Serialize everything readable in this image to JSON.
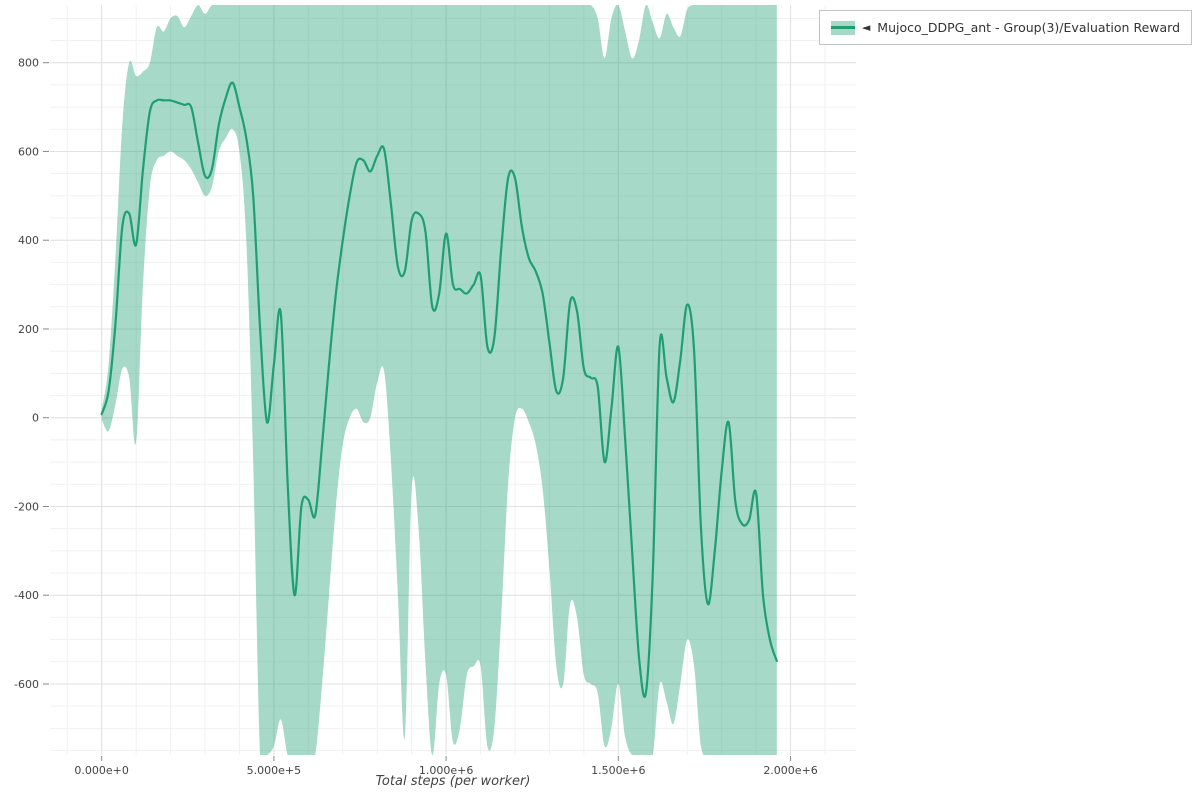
{
  "page": {
    "background": "#ffffff"
  },
  "legend": {
    "marker": "◄",
    "label": "Mujoco_DDPG_ant - Group(3)/Evaluation Reward",
    "swatch_fill_color": "#a5d9c6",
    "swatch_line_color": "#1f9e73"
  },
  "chart_data": {
    "type": "line",
    "title": "",
    "xlabel": "Total steps (per worker)",
    "ylabel": "",
    "xlim": [
      -150000,
      2190000
    ],
    "ylim": [
      -760,
      930
    ],
    "grid": {
      "on": true,
      "x_minor_step": 100000,
      "y_minor_step": 50,
      "minor_color": "#f1f1f1",
      "major_color": "#e1e1e1"
    },
    "x_ticks": [
      {
        "v": 0,
        "label": "0.000e+0"
      },
      {
        "v": 500000,
        "label": "5.000e+5"
      },
      {
        "v": 1000000,
        "label": "1.000e+6"
      },
      {
        "v": 1500000,
        "label": "1.500e+6"
      },
      {
        "v": 2000000,
        "label": "2.000e+6"
      }
    ],
    "y_ticks": [
      {
        "v": 800,
        "label": "800"
      },
      {
        "v": 600,
        "label": "600"
      },
      {
        "v": 400,
        "label": "400"
      },
      {
        "v": 200,
        "label": "200"
      },
      {
        "v": 0,
        "label": "0"
      },
      {
        "v": -200,
        "label": "-200"
      },
      {
        "v": -400,
        "label": "-400"
      },
      {
        "v": -600,
        "label": "-600"
      }
    ],
    "legend_position": "top-right-outside",
    "series": [
      {
        "name": "Mujoco_DDPG_ant - Group(3)/Evaluation Reward",
        "line_color": "#1f9e73",
        "line_width": 2.2,
        "band_fill": "#2aa579",
        "band_opacity": 0.42,
        "x": [
          0,
          20000,
          40000,
          60000,
          80000,
          100000,
          120000,
          140000,
          160000,
          180000,
          200000,
          220000,
          240000,
          260000,
          280000,
          300000,
          320000,
          340000,
          360000,
          380000,
          400000,
          420000,
          440000,
          460000,
          480000,
          500000,
          520000,
          540000,
          560000,
          580000,
          600000,
          620000,
          640000,
          660000,
          680000,
          700000,
          720000,
          740000,
          760000,
          780000,
          800000,
          820000,
          840000,
          860000,
          880000,
          900000,
          920000,
          940000,
          960000,
          980000,
          1000000,
          1020000,
          1040000,
          1060000,
          1080000,
          1100000,
          1120000,
          1140000,
          1160000,
          1180000,
          1200000,
          1220000,
          1240000,
          1260000,
          1280000,
          1300000,
          1320000,
          1340000,
          1360000,
          1380000,
          1400000,
          1420000,
          1440000,
          1460000,
          1480000,
          1500000,
          1520000,
          1540000,
          1560000,
          1580000,
          1600000,
          1620000,
          1640000,
          1660000,
          1680000,
          1700000,
          1720000,
          1740000,
          1760000,
          1780000,
          1800000,
          1820000,
          1840000,
          1860000,
          1880000,
          1900000,
          1920000,
          1940000,
          1960000
        ],
        "mean": [
          8,
          60,
          210,
          430,
          460,
          390,
          560,
          690,
          715,
          715,
          715,
          710,
          705,
          700,
          620,
          545,
          560,
          660,
          720,
          755,
          700,
          630,
          500,
          200,
          -10,
          120,
          235,
          -150,
          -400,
          -200,
          -185,
          -220,
          -60,
          120,
          280,
          400,
          500,
          575,
          580,
          555,
          590,
          605,
          480,
          340,
          330,
          445,
          460,
          420,
          250,
          280,
          415,
          300,
          290,
          280,
          300,
          320,
          160,
          180,
          380,
          540,
          540,
          430,
          360,
          330,
          280,
          170,
          60,
          90,
          260,
          240,
          110,
          90,
          70,
          -100,
          20,
          160,
          -50,
          -300,
          -540,
          -620,
          -350,
          165,
          90,
          35,
          130,
          255,
          150,
          -250,
          -420,
          -300,
          -120,
          -10,
          -190,
          -240,
          -230,
          -170,
          -400,
          -500,
          -548
        ],
        "upper": [
          18,
          120,
          360,
          660,
          800,
          770,
          780,
          800,
          880,
          870,
          900,
          905,
          880,
          905,
          930,
          910,
          930,
          930,
          930,
          930,
          930,
          930,
          930,
          930,
          930,
          930,
          930,
          930,
          930,
          930,
          930,
          930,
          930,
          930,
          930,
          930,
          930,
          930,
          930,
          930,
          930,
          930,
          930,
          930,
          930,
          930,
          930,
          930,
          930,
          930,
          930,
          930,
          930,
          930,
          930,
          930,
          930,
          930,
          930,
          930,
          930,
          930,
          930,
          930,
          930,
          930,
          930,
          930,
          930,
          930,
          930,
          930,
          900,
          810,
          900,
          930,
          870,
          810,
          850,
          930,
          890,
          855,
          910,
          880,
          860,
          920,
          930,
          930,
          930,
          930,
          930,
          930,
          930,
          930,
          930,
          930,
          930,
          930,
          930
        ],
        "lower": [
          -4,
          -30,
          30,
          110,
          90,
          -55,
          300,
          520,
          580,
          590,
          600,
          590,
          580,
          560,
          530,
          500,
          520,
          600,
          630,
          650,
          600,
          400,
          -100,
          -760,
          -760,
          -740,
          -680,
          -760,
          -760,
          -760,
          -760,
          -760,
          -600,
          -400,
          -200,
          -60,
          0,
          20,
          -10,
          0,
          80,
          105,
          -100,
          -400,
          -720,
          -160,
          -250,
          -550,
          -760,
          -600,
          -580,
          -730,
          -700,
          -580,
          -560,
          -560,
          -740,
          -700,
          -450,
          -150,
          0,
          20,
          -10,
          -60,
          -160,
          -340,
          -560,
          -600,
          -420,
          -450,
          -580,
          -600,
          -620,
          -740,
          -700,
          -600,
          -720,
          -760,
          -760,
          -760,
          -760,
          -600,
          -640,
          -690,
          -600,
          -500,
          -560,
          -740,
          -760,
          -760,
          -760,
          -760,
          -760,
          -760,
          -760,
          -760,
          -760,
          -760,
          -760,
          -760
        ]
      }
    ]
  }
}
